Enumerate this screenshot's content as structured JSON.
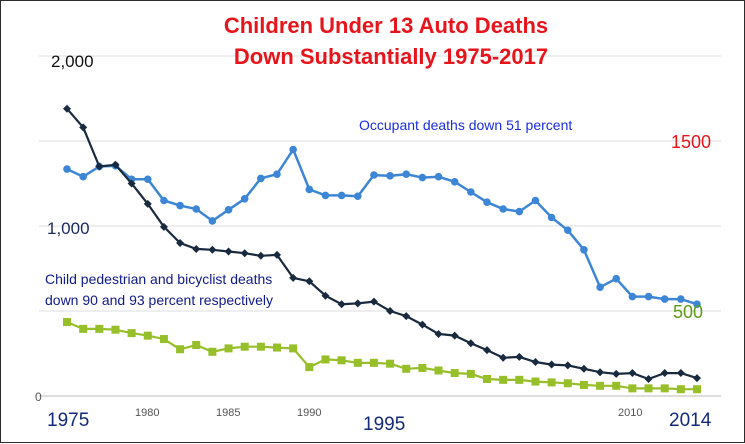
{
  "chart_data": {
    "type": "line",
    "title_line1": "Children Under 13  Auto Deaths",
    "title_line2": "Down Substantially 1975-2017",
    "xlabel": "",
    "ylabel": "",
    "x": [
      1975,
      1976,
      1977,
      1978,
      1979,
      1980,
      1981,
      1982,
      1983,
      1984,
      1985,
      1986,
      1987,
      1988,
      1989,
      1990,
      1991,
      1992,
      1993,
      1994,
      1995,
      1996,
      1997,
      1998,
      1999,
      2000,
      2001,
      2002,
      2003,
      2004,
      2005,
      2006,
      2007,
      2008,
      2009,
      2010,
      2011,
      2012,
      2013,
      2014
    ],
    "xlim": [
      1975,
      2014
    ],
    "ylim": [
      0,
      2000
    ],
    "x_ticks_small": [
      "1980",
      "1985",
      "1990",
      "2010"
    ],
    "x_ticks_large": [
      "1975",
      "1995",
      "2014"
    ],
    "y_labels_left": [
      "2,000",
      "1,000",
      "0"
    ],
    "y_labels_right": [
      "1500",
      "500"
    ],
    "grid": "horizontal",
    "series": [
      {
        "id": "occupant",
        "color": "#3d86d6",
        "marker": "circle",
        "values": [
          1335,
          1290,
          1350,
          1355,
          1275,
          1275,
          1150,
          1120,
          1100,
          1030,
          1095,
          1160,
          1280,
          1305,
          1450,
          1215,
          1180,
          1180,
          1175,
          1300,
          1295,
          1305,
          1285,
          1290,
          1260,
          1200,
          1140,
          1100,
          1085,
          1150,
          1050,
          975,
          860,
          640,
          690,
          585,
          585,
          570,
          570,
          540
        ]
      },
      {
        "id": "pedestrian",
        "color": "#1a2a3e",
        "marker": "diamond",
        "values": [
          1690,
          1580,
          1350,
          1360,
          1250,
          1130,
          995,
          900,
          865,
          860,
          850,
          840,
          825,
          830,
          695,
          675,
          590,
          540,
          545,
          555,
          500,
          470,
          420,
          365,
          355,
          310,
          270,
          225,
          230,
          200,
          185,
          180,
          160,
          140,
          130,
          135,
          100,
          135,
          135,
          105
        ]
      },
      {
        "id": "bicyclist",
        "color": "#97bf2a",
        "marker": "square",
        "values": [
          435,
          395,
          395,
          390,
          370,
          355,
          335,
          275,
          300,
          260,
          280,
          290,
          290,
          285,
          280,
          170,
          215,
          210,
          195,
          195,
          190,
          160,
          165,
          150,
          135,
          130,
          100,
          95,
          95,
          85,
          80,
          75,
          65,
          60,
          60,
          45,
          45,
          45,
          40,
          40
        ]
      }
    ],
    "annotations": {
      "occupant": "Occupant deaths down 51 percent",
      "ped_line1": "Child pedestrian and bicyclist deaths",
      "ped_line2": "down 90 and 93 percent respectively"
    }
  }
}
